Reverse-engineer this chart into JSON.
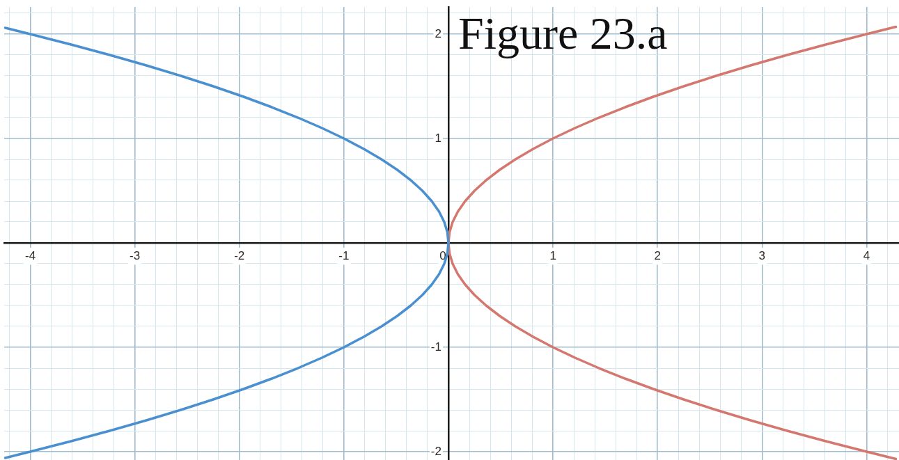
{
  "chart_data": {
    "type": "line",
    "title": "Figure 23.a",
    "xlim": [
      -4.25,
      4.31
    ],
    "ylim": [
      -2.08,
      2.26
    ],
    "xticks": [
      {
        "value": -4.2,
        "label": null
      },
      -4,
      {
        "value": -3.8,
        "label": null
      },
      {
        "value": -3.6,
        "label": null
      },
      {
        "value": -3.4,
        "label": null
      },
      {
        "value": -3.2,
        "label": null
      },
      -3,
      {
        "value": -2.8,
        "label": null
      },
      {
        "value": -2.6,
        "label": null
      },
      {
        "value": -2.4,
        "label": null
      },
      {
        "value": -2.2,
        "label": null
      },
      -2,
      {
        "value": -1.8,
        "label": null
      },
      {
        "value": -1.6,
        "label": null
      },
      {
        "value": -1.4,
        "label": null
      },
      {
        "value": -1.2,
        "label": null
      },
      -1,
      {
        "value": -0.8,
        "label": null
      },
      {
        "value": -0.6,
        "label": null
      },
      {
        "value": -0.4,
        "label": null
      },
      {
        "value": -0.2,
        "label": null
      },
      0,
      {
        "value": 0.2,
        "label": null
      },
      {
        "value": 0.4,
        "label": null
      },
      {
        "value": 0.6,
        "label": null
      },
      {
        "value": 0.8,
        "label": null
      },
      1,
      {
        "value": 1.2,
        "label": null
      },
      {
        "value": 1.4,
        "label": null
      },
      {
        "value": 1.6,
        "label": null
      },
      {
        "value": 1.8,
        "label": null
      },
      2,
      {
        "value": 2.2,
        "label": null
      },
      {
        "value": 2.4,
        "label": null
      },
      {
        "value": 2.6,
        "label": null
      },
      {
        "value": 2.8,
        "label": null
      },
      3,
      {
        "value": 3.2,
        "label": null
      },
      {
        "value": 3.4,
        "label": null
      },
      {
        "value": 3.6,
        "label": null
      },
      {
        "value": 3.8,
        "label": null
      },
      4,
      {
        "value": 4.2,
        "label": null
      }
    ],
    "yticks": [
      -2,
      {
        "value": -1.8,
        "label": null
      },
      {
        "value": -1.6,
        "label": null
      },
      {
        "value": -1.4,
        "label": null
      },
      {
        "value": -1.2,
        "label": null
      },
      -1,
      {
        "value": -0.8,
        "label": null
      },
      {
        "value": -0.6,
        "label": null
      },
      {
        "value": -0.4,
        "label": null
      },
      {
        "value": -0.2,
        "label": null
      },
      {
        "value": 0,
        "label": null
      },
      {
        "value": 0.2,
        "label": null
      },
      {
        "value": 0.4,
        "label": null
      },
      {
        "value": 0.6,
        "label": null
      },
      {
        "value": 0.8,
        "label": null
      },
      1,
      {
        "value": 1.2,
        "label": null
      },
      {
        "value": 1.4,
        "label": null
      },
      {
        "value": 1.6,
        "label": null
      },
      {
        "value": 1.8,
        "label": null
      },
      2,
      {
        "value": 2.2,
        "label": null
      }
    ],
    "grid": true,
    "series": [
      {
        "color": "#4a90d0",
        "x": [
          -4.24,
          -4,
          -3.61,
          -3.24,
          -2.89,
          -2.56,
          -2.25,
          -1.96,
          -1.69,
          -1.44,
          -1.21,
          -1,
          -0.81,
          -0.64,
          -0.49,
          -0.36,
          -0.25,
          -0.16,
          -0.09,
          -0.04,
          -0.01,
          0,
          -0.01,
          -0.04,
          -0.09,
          -0.16,
          -0.25,
          -0.36,
          -0.49,
          -0.64,
          -0.81,
          -1,
          -1.21,
          -1.44,
          -1.69,
          -1.96,
          -2.25,
          -2.56,
          -2.89,
          -3.24,
          -3.61,
          -4,
          -4.24
        ],
        "values": [
          -2.06,
          -2,
          -1.9,
          -1.8,
          -1.7,
          -1.6,
          -1.5,
          -1.4,
          -1.3,
          -1.2,
          -1.1,
          -1,
          -0.9,
          -0.8,
          -0.7,
          -0.6,
          -0.5,
          -0.4,
          -0.3,
          -0.2,
          -0.1,
          0,
          0.1,
          0.2,
          0.3,
          0.4,
          0.5,
          0.6,
          0.7,
          0.8,
          0.9,
          1,
          1.1,
          1.2,
          1.3,
          1.4,
          1.5,
          1.6,
          1.7,
          1.8,
          1.9,
          2,
          2.06
        ]
      },
      {
        "color": "#d4786f",
        "x": [
          4.28,
          4,
          3.61,
          3.24,
          2.89,
          2.56,
          2.25,
          1.96,
          1.69,
          1.44,
          1.21,
          1,
          0.81,
          0.64,
          0.49,
          0.36,
          0.25,
          0.16,
          0.09,
          0.04,
          0.01,
          0,
          0.01,
          0.04,
          0.09,
          0.16,
          0.25,
          0.36,
          0.49,
          0.64,
          0.81,
          1,
          1.21,
          1.44,
          1.69,
          1.96,
          2.25,
          2.56,
          2.89,
          3.24,
          3.61,
          4,
          4.28
        ],
        "values": [
          -2.07,
          -2,
          -1.9,
          -1.8,
          -1.7,
          -1.6,
          -1.5,
          -1.4,
          -1.3,
          -1.2,
          -1.1,
          -1,
          -0.9,
          -0.8,
          -0.7,
          -0.6,
          -0.5,
          -0.4,
          -0.3,
          -0.2,
          -0.1,
          0,
          0.1,
          0.2,
          0.3,
          0.4,
          0.5,
          0.6,
          0.7,
          0.8,
          0.9,
          1,
          1.1,
          1.2,
          1.3,
          1.4,
          1.5,
          1.6,
          1.7,
          1.8,
          1.9,
          2,
          2.07
        ]
      }
    ]
  }
}
